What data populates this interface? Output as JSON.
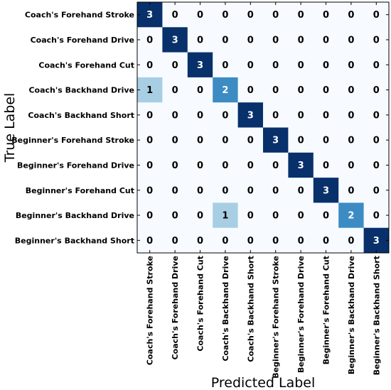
{
  "chart_data": {
    "type": "heatmap",
    "title": "",
    "xlabel": "Predicted Label",
    "ylabel": "True Label",
    "x_categories": [
      "Coach's Forehand Stroke",
      "Coach's Forehand Drive",
      "Coach's Forehand Cut",
      "Coach's Backhand Drive",
      "Coach's Backhand Short",
      "Beginner's Forehand Stroke",
      "Beginner's Forehand Drive",
      "Beginner's Forehand Cut",
      "Beginner's Backhand Drive",
      "Beginner's Backhand Short"
    ],
    "y_categories": [
      "Coach's Forehand Stroke",
      "Coach's Forehand Drive",
      "Coach's Forehand Cut",
      "Coach's Backhand Drive",
      "Coach's Backhand Short",
      "Beginner's Forehand Stroke",
      "Beginner's Forehand Drive",
      "Beginner's Forehand Cut",
      "Beginner's Backhand Drive",
      "Beginner's Backhand Short"
    ],
    "values": [
      [
        3,
        0,
        0,
        0,
        0,
        0,
        0,
        0,
        0,
        0
      ],
      [
        0,
        3,
        0,
        0,
        0,
        0,
        0,
        0,
        0,
        0
      ],
      [
        0,
        0,
        3,
        0,
        0,
        0,
        0,
        0,
        0,
        0
      ],
      [
        1,
        0,
        0,
        2,
        0,
        0,
        0,
        0,
        0,
        0
      ],
      [
        0,
        0,
        0,
        0,
        3,
        0,
        0,
        0,
        0,
        0
      ],
      [
        0,
        0,
        0,
        0,
        0,
        3,
        0,
        0,
        0,
        0
      ],
      [
        0,
        0,
        0,
        0,
        0,
        0,
        3,
        0,
        0,
        0
      ],
      [
        0,
        0,
        0,
        0,
        0,
        0,
        0,
        3,
        0,
        0
      ],
      [
        0,
        0,
        0,
        1,
        0,
        0,
        0,
        0,
        2,
        0
      ],
      [
        0,
        0,
        0,
        0,
        0,
        0,
        0,
        0,
        0,
        3
      ]
    ],
    "value_range": [
      0,
      3
    ],
    "colormap": "Blues",
    "colors": {
      "0": "#f7fbff",
      "1": "#a8cee4",
      "2": "#3c8cc3",
      "3": "#08306b"
    },
    "text_colors": {
      "dark_cell": "#ffffff",
      "light_cell": "#000000"
    },
    "grid": false,
    "legend": "none"
  }
}
